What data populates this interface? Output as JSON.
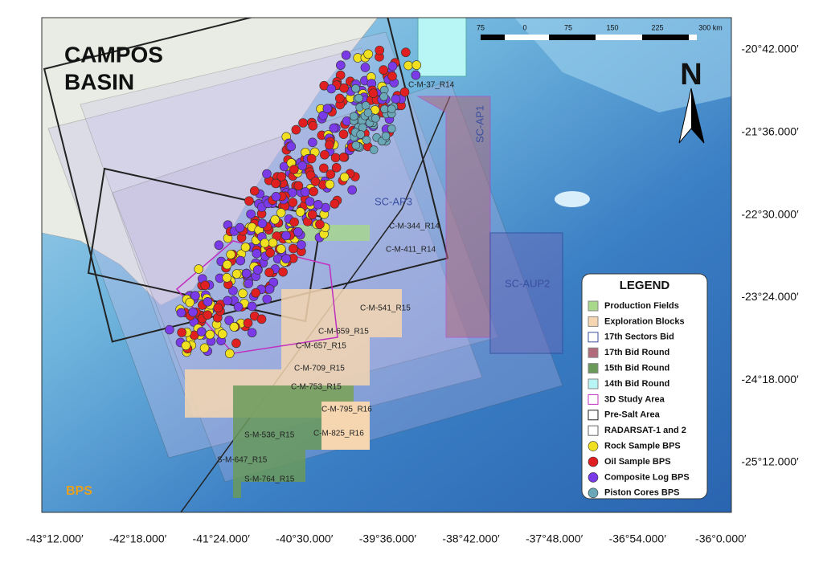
{
  "map": {
    "title": [
      "CAMPOS",
      "BASIN"
    ],
    "logo": "BPS",
    "north": "N",
    "scale_bar": [
      "75",
      "0",
      "75",
      "150",
      "225",
      "300 km"
    ],
    "lat_labels": [
      "-20°42.000′",
      "-21°36.000′",
      "-22°30.000′",
      "-23°24.000′",
      "-24°18.000′",
      "-25°12.000′"
    ],
    "lon_labels": [
      "-43°12.000′",
      "-42°18.000′",
      "-41°24.000′",
      "-40°30.000′",
      "-39°36.000′",
      "-38°42.000′",
      "-37°48.000′",
      "-36°54.000′",
      "-36°0.000′"
    ],
    "block_labels": [
      "C-M-37_R14",
      "SC-AP1",
      "SC-AP3",
      "C-M-344_R14",
      "C-M-411_R14",
      "SC-AUP2",
      "C-M-541_R15",
      "C-M-659_R15",
      "C-M-657_R15",
      "C-M-709_R15",
      "C-M-753_R15",
      "C-M-795_R16",
      "C-M-825_R16",
      "S-M-536_R15",
      "S-M-647_R15",
      "S-M-764_R15"
    ],
    "legend": {
      "title": "LEGEND",
      "items": [
        {
          "label": "Production Fields",
          "color": "#a8d88a",
          "shape": "rect"
        },
        {
          "label": "Exploration Blocks",
          "color": "#f5d6b0",
          "shape": "rect"
        },
        {
          "label": "17th Sectors Bid",
          "color": "#3a4fa0",
          "shape": "outline"
        },
        {
          "label": "17th Bid Round",
          "color": "#b06a7a",
          "shape": "rect"
        },
        {
          "label": "15th Bid Round",
          "color": "#6a9a5a",
          "shape": "rect"
        },
        {
          "label": "14th Bid Round",
          "color": "#b8f5f5",
          "shape": "rect"
        },
        {
          "label": "3D Study Area",
          "color": "#c030c0",
          "shape": "outline"
        },
        {
          "label": "Pre-Salt Area",
          "color": "#222222",
          "shape": "outline"
        },
        {
          "label": "RADARSAT-1 and 2",
          "color": "#666666",
          "shape": "outline"
        },
        {
          "label": "Rock Sample BPS",
          "color": "#f0e020",
          "shape": "circle"
        },
        {
          "label": "Oil Sample BPS",
          "color": "#e02020",
          "shape": "circle"
        },
        {
          "label": "Composite Log BPS",
          "color": "#7a3ae8",
          "shape": "circle"
        },
        {
          "label": "Piston Cores BPS",
          "color": "#6aa8b8",
          "shape": "circle"
        }
      ]
    }
  }
}
